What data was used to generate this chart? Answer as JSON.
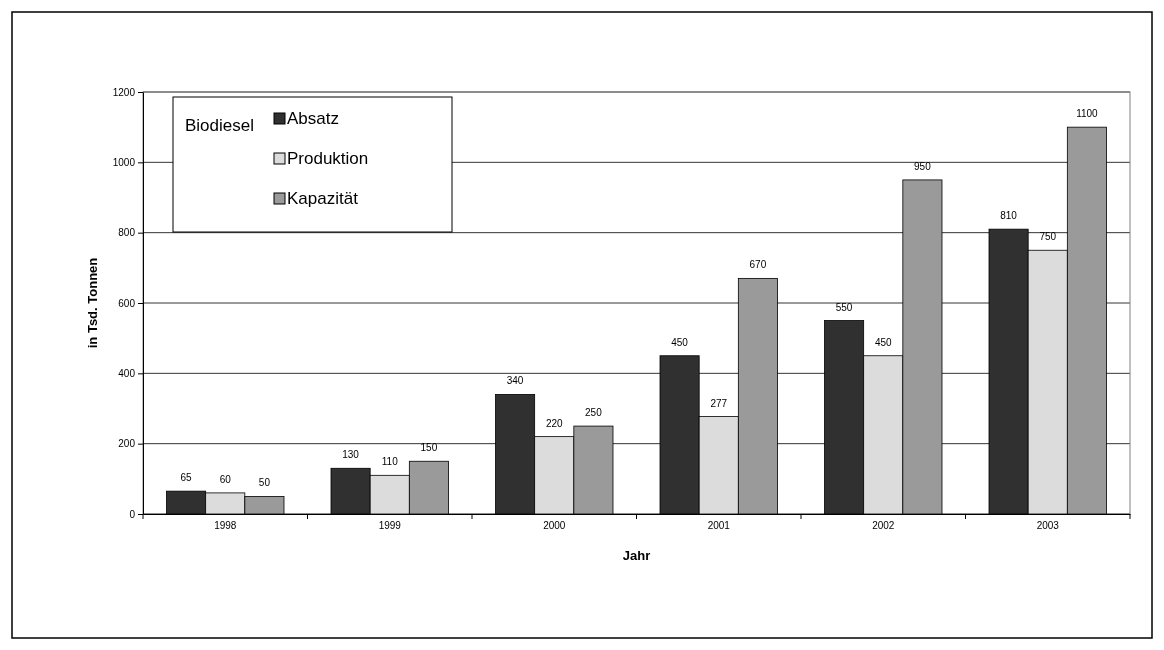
{
  "chart_data": {
    "type": "bar",
    "xlabel": "Jahr",
    "ylabel": "in Tsd. Tonnen",
    "legend_title": "Biodiesel",
    "categories": [
      "1998",
      "1999",
      "2000",
      "2001",
      "2002",
      "2003"
    ],
    "series": [
      {
        "name": "Absatz",
        "color": "#303030",
        "values": [
          65,
          130,
          340,
          450,
          550,
          810
        ]
      },
      {
        "name": "Produktion",
        "color": "#dcdcdc",
        "values": [
          60,
          110,
          220,
          277,
          450,
          750
        ]
      },
      {
        "name": "Kapazität",
        "color": "#9a9a9a",
        "values": [
          50,
          150,
          250,
          670,
          950,
          1100
        ]
      }
    ],
    "ylim": [
      0,
      1200
    ],
    "yticks": [
      0,
      200,
      400,
      600,
      800,
      1000,
      1200
    ],
    "grid": "y",
    "legend": "top left",
    "data_labels": true
  }
}
